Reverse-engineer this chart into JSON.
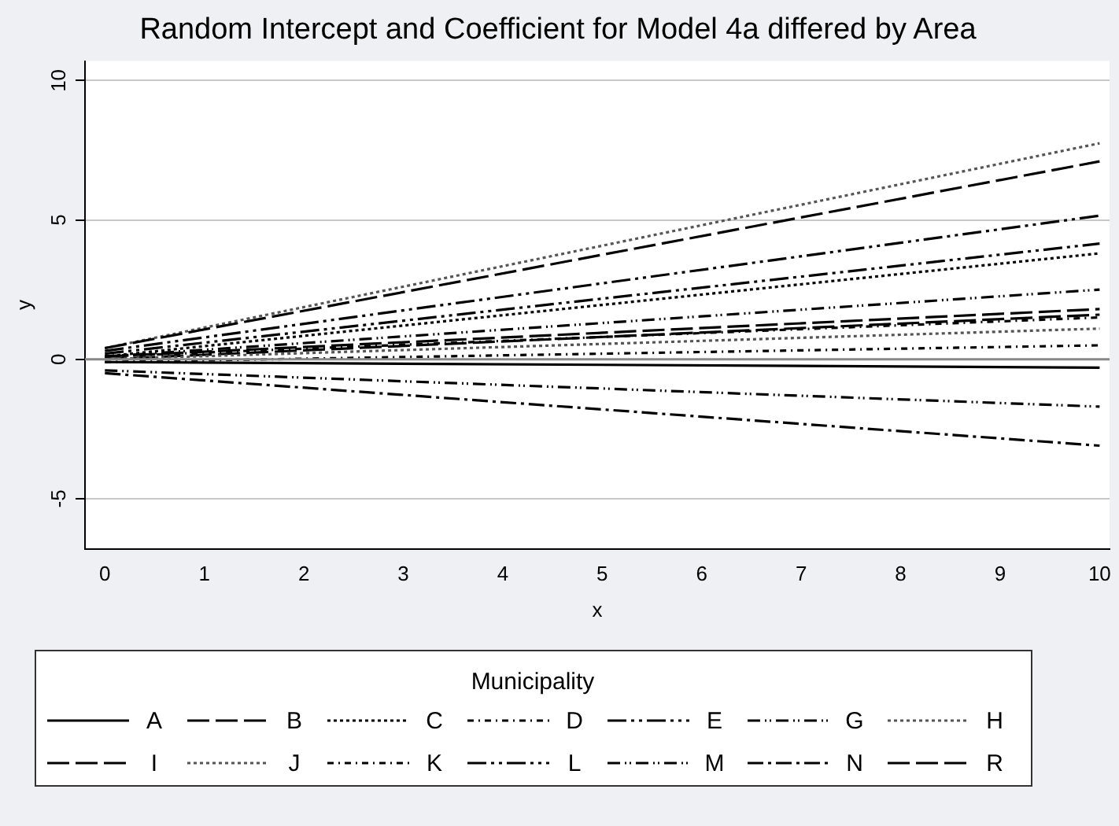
{
  "chart_data": {
    "type": "line",
    "title": "Random Intercept and Coefficient for Model 4a differed by Area",
    "xlabel": "x",
    "ylabel": "y",
    "legend_title": "Municipality",
    "x": [
      0,
      10
    ],
    "xlim": [
      -0.2,
      10.1
    ],
    "xticks": [
      0,
      1,
      2,
      3,
      4,
      5,
      6,
      7,
      8,
      9,
      10
    ],
    "ylim": [
      -6.8,
      10.7
    ],
    "yticks": [
      -5,
      0,
      5,
      10
    ],
    "grid": "y",
    "legend": "bottom",
    "marker": "none",
    "ref_lines": [
      {
        "axis": "y",
        "value": 0,
        "color": "#888888"
      }
    ],
    "series": [
      {
        "name": "A",
        "color": "#000000",
        "line_style": "solid",
        "values": [
          -0.1,
          -0.3
        ]
      },
      {
        "name": "B",
        "color": "#000000",
        "line_style": "dashed",
        "values": [
          0.4,
          7.1
        ]
      },
      {
        "name": "C",
        "color": "#000000",
        "line_style": "dotted",
        "values": [
          0.1,
          3.8
        ]
      },
      {
        "name": "D",
        "color": "#000000",
        "line_style": "dashed",
        "values": [
          -0.1,
          0.5
        ]
      },
      {
        "name": "E",
        "color": "#000000",
        "line_style": "dashed",
        "values": [
          0.2,
          4.15
        ]
      },
      {
        "name": "G",
        "color": "#000000",
        "line_style": "dashed",
        "values": [
          0.1,
          2.5
        ]
      },
      {
        "name": "H",
        "color": "#555555",
        "line_style": "dotted",
        "values": [
          0,
          1.1
        ]
      },
      {
        "name": "I",
        "color": "#000000",
        "line_style": "dashed",
        "values": [
          0.1,
          1.8
        ]
      },
      {
        "name": "J",
        "color": "#555555",
        "line_style": "dotted",
        "values": [
          0.4,
          7.75
        ]
      },
      {
        "name": "K",
        "color": "#000000",
        "line_style": "dashed",
        "values": [
          0.1,
          1.5
        ]
      },
      {
        "name": "L",
        "color": "#000000",
        "line_style": "dashed",
        "values": [
          0.3,
          5.15
        ]
      },
      {
        "name": "M",
        "color": "#000000",
        "line_style": "dashed",
        "values": [
          -0.4,
          -1.7
        ]
      },
      {
        "name": "N",
        "color": "#000000",
        "line_style": "dashed",
        "values": [
          -0.5,
          -3.1
        ]
      },
      {
        "name": "R",
        "color": "#000000",
        "line_style": "dashed",
        "values": [
          0,
          1.6
        ]
      }
    ]
  }
}
